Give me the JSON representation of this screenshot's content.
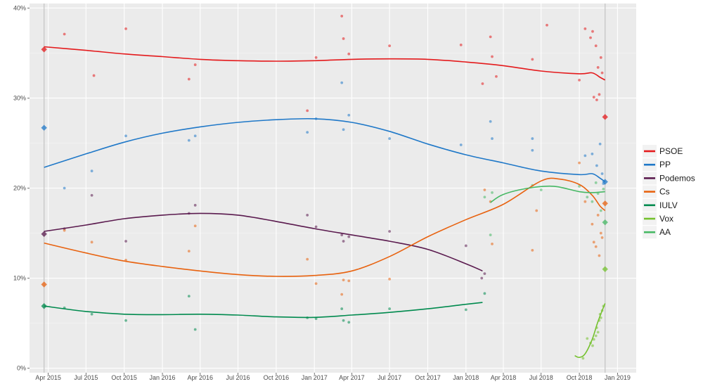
{
  "chart_data": {
    "type": "line",
    "xlim": [
      "2015-02-15",
      "2019-02-15"
    ],
    "ylim": [
      -0.5,
      40.5
    ],
    "y_ticks": [
      {
        "value": 0,
        "label": "0%"
      },
      {
        "value": 10,
        "label": "10%"
      },
      {
        "value": 20,
        "label": "20%"
      },
      {
        "value": 30,
        "label": "30%"
      },
      {
        "value": 40,
        "label": "40%"
      }
    ],
    "x_ticks": [
      {
        "date": "2015-04-01",
        "label": "Apr 2015"
      },
      {
        "date": "2015-07-01",
        "label": "Jul 2015"
      },
      {
        "date": "2015-10-01",
        "label": "Oct 2015"
      },
      {
        "date": "2016-01-01",
        "label": "Jan 2016"
      },
      {
        "date": "2016-04-01",
        "label": "Apr 2016"
      },
      {
        "date": "2016-07-01",
        "label": "Jul 2016"
      },
      {
        "date": "2016-10-01",
        "label": "Oct 2016"
      },
      {
        "date": "2017-01-01",
        "label": "Jan 2017"
      },
      {
        "date": "2017-04-01",
        "label": "Apr 2017"
      },
      {
        "date": "2017-07-01",
        "label": "Jul 2017"
      },
      {
        "date": "2017-10-01",
        "label": "Oct 2017"
      },
      {
        "date": "2018-01-01",
        "label": "Jan 2018"
      },
      {
        "date": "2018-04-01",
        "label": "Apr 2018"
      },
      {
        "date": "2018-07-01",
        "label": "Jul 2018"
      },
      {
        "date": "2018-10-01",
        "label": "Oct 2018"
      },
      {
        "date": "2019-01-01",
        "label": "Jan 2019"
      }
    ],
    "election_lines": [
      "2015-03-22",
      "2018-12-02"
    ],
    "grid": true,
    "legend_position": "right",
    "series": [
      {
        "name": "PSOE",
        "color": "#e41a1c",
        "trend": [
          [
            "2015-03-22",
            35.7
          ],
          [
            "2015-07-01",
            35.3
          ],
          [
            "2015-10-01",
            34.9
          ],
          [
            "2016-01-01",
            34.6
          ],
          [
            "2016-04-01",
            34.3
          ],
          [
            "2016-07-01",
            34.15
          ],
          [
            "2016-10-01",
            34.1
          ],
          [
            "2017-01-01",
            34.15
          ],
          [
            "2017-04-01",
            34.3
          ],
          [
            "2017-07-01",
            34.35
          ],
          [
            "2017-10-01",
            34.3
          ],
          [
            "2018-01-01",
            34.0
          ],
          [
            "2018-04-01",
            33.6
          ],
          [
            "2018-07-01",
            33.0
          ],
          [
            "2018-10-01",
            32.7
          ],
          [
            "2018-11-01",
            32.8
          ],
          [
            "2018-11-20",
            32.3
          ],
          [
            "2018-12-02",
            32.0
          ]
        ],
        "result_start": [
          "2015-03-22",
          35.4
        ],
        "result_end": [
          "2018-12-02",
          27.9
        ],
        "polls": [
          [
            "2015-05-10",
            37.1
          ],
          [
            "2015-07-20",
            32.5
          ],
          [
            "2015-10-05",
            37.7
          ],
          [
            "2016-03-05",
            32.1
          ],
          [
            "2016-03-20",
            33.7
          ],
          [
            "2016-12-15",
            28.6
          ],
          [
            "2017-01-05",
            34.5
          ],
          [
            "2017-03-08",
            39.1
          ],
          [
            "2017-03-12",
            36.6
          ],
          [
            "2017-03-25",
            34.9
          ],
          [
            "2017-07-01",
            35.8
          ],
          [
            "2017-12-20",
            35.9
          ],
          [
            "2018-02-10",
            31.6
          ],
          [
            "2018-03-01",
            36.8
          ],
          [
            "2018-03-05",
            34.6
          ],
          [
            "2018-03-15",
            32.4
          ],
          [
            "2018-06-10",
            34.3
          ],
          [
            "2018-07-15",
            38.1
          ],
          [
            "2018-10-01",
            32.0
          ],
          [
            "2018-10-15",
            37.7
          ],
          [
            "2018-10-28",
            36.7
          ],
          [
            "2018-11-02",
            37.4
          ],
          [
            "2018-11-05",
            30.1
          ],
          [
            "2018-11-10",
            35.8
          ],
          [
            "2018-11-12",
            29.8
          ],
          [
            "2018-11-15",
            33.4
          ],
          [
            "2018-11-18",
            30.4
          ],
          [
            "2018-11-22",
            34.5
          ],
          [
            "2018-11-25",
            32.8
          ]
        ]
      },
      {
        "name": "PP",
        "color": "#1f78c8",
        "trend": [
          [
            "2015-03-22",
            22.3
          ],
          [
            "2015-07-01",
            23.8
          ],
          [
            "2015-10-01",
            25.1
          ],
          [
            "2016-01-01",
            26.1
          ],
          [
            "2016-04-01",
            26.8
          ],
          [
            "2016-07-01",
            27.3
          ],
          [
            "2016-10-01",
            27.6
          ],
          [
            "2017-01-01",
            27.7
          ],
          [
            "2017-04-01",
            27.3
          ],
          [
            "2017-07-01",
            26.3
          ],
          [
            "2017-10-01",
            24.9
          ],
          [
            "2018-01-01",
            23.7
          ],
          [
            "2018-04-01",
            22.8
          ],
          [
            "2018-07-01",
            21.9
          ],
          [
            "2018-10-01",
            21.5
          ],
          [
            "2018-11-01",
            21.6
          ],
          [
            "2018-11-20",
            21.1
          ],
          [
            "2018-12-02",
            20.7
          ]
        ],
        "result_start": [
          "2015-03-22",
          26.7
        ],
        "result_end": [
          "2018-12-02",
          20.7
        ],
        "polls": [
          [
            "2015-05-10",
            20.0
          ],
          [
            "2015-07-15",
            21.9
          ],
          [
            "2015-10-05",
            25.8
          ],
          [
            "2016-03-05",
            25.3
          ],
          [
            "2016-03-20",
            25.8
          ],
          [
            "2016-12-15",
            26.2
          ],
          [
            "2017-01-05",
            27.7
          ],
          [
            "2017-03-08",
            31.7
          ],
          [
            "2017-03-12",
            26.5
          ],
          [
            "2017-03-25",
            28.1
          ],
          [
            "2017-07-01",
            25.5
          ],
          [
            "2017-12-20",
            24.8
          ],
          [
            "2018-03-01",
            27.4
          ],
          [
            "2018-03-05",
            25.5
          ],
          [
            "2018-06-10",
            25.5
          ],
          [
            "2018-06-10",
            24.2
          ],
          [
            "2018-10-15",
            23.6
          ],
          [
            "2018-11-01",
            23.8
          ],
          [
            "2018-11-12",
            22.5
          ],
          [
            "2018-11-20",
            24.9
          ],
          [
            "2018-11-25",
            21.6
          ],
          [
            "2018-11-28",
            20.5
          ]
        ]
      },
      {
        "name": "Podemos",
        "color": "#5a1a4e",
        "trend": [
          [
            "2015-03-22",
            15.2
          ],
          [
            "2015-07-01",
            15.9
          ],
          [
            "2015-10-01",
            16.6
          ],
          [
            "2016-01-01",
            17.0
          ],
          [
            "2016-04-01",
            17.2
          ],
          [
            "2016-07-01",
            17.0
          ],
          [
            "2016-10-01",
            16.3
          ],
          [
            "2017-01-01",
            15.5
          ],
          [
            "2017-04-01",
            14.8
          ],
          [
            "2017-07-01",
            14.1
          ],
          [
            "2017-10-01",
            13.2
          ],
          [
            "2018-01-01",
            11.6
          ],
          [
            "2018-02-10",
            10.8
          ]
        ],
        "result_start": [
          "2015-03-22",
          14.9
        ],
        "result_end": null,
        "polls": [
          [
            "2015-05-10",
            15.5
          ],
          [
            "2015-07-15",
            19.2
          ],
          [
            "2015-10-05",
            14.1
          ],
          [
            "2016-03-05",
            17.2
          ],
          [
            "2016-03-20",
            18.1
          ],
          [
            "2016-12-15",
            17.0
          ],
          [
            "2017-01-05",
            15.7
          ],
          [
            "2017-03-08",
            14.8
          ],
          [
            "2017-03-12",
            14.1
          ],
          [
            "2017-03-25",
            14.6
          ],
          [
            "2017-07-01",
            15.2
          ],
          [
            "2018-01-01",
            13.6
          ],
          [
            "2018-02-08",
            10.0
          ],
          [
            "2018-02-15",
            10.5
          ]
        ]
      },
      {
        "name": "Cs",
        "color": "#e8620f",
        "trend": [
          [
            "2015-03-22",
            13.9
          ],
          [
            "2015-07-01",
            12.8
          ],
          [
            "2015-10-01",
            11.9
          ],
          [
            "2016-01-01",
            11.3
          ],
          [
            "2016-04-01",
            10.8
          ],
          [
            "2016-07-01",
            10.4
          ],
          [
            "2016-10-01",
            10.2
          ],
          [
            "2017-01-01",
            10.3
          ],
          [
            "2017-04-01",
            10.8
          ],
          [
            "2017-07-01",
            12.4
          ],
          [
            "2017-10-01",
            14.6
          ],
          [
            "2018-01-01",
            16.5
          ],
          [
            "2018-04-01",
            18.2
          ],
          [
            "2018-07-01",
            20.8
          ],
          [
            "2018-08-15",
            21.0
          ],
          [
            "2018-10-01",
            20.4
          ],
          [
            "2018-11-01",
            19.2
          ],
          [
            "2018-11-20",
            18.0
          ],
          [
            "2018-12-02",
            17.5
          ]
        ],
        "result_start": [
          "2015-03-22",
          9.3
        ],
        "result_end": [
          "2018-12-02",
          18.3
        ],
        "polls": [
          [
            "2015-05-10",
            15.3
          ],
          [
            "2015-07-15",
            14.0
          ],
          [
            "2015-10-05",
            12.0
          ],
          [
            "2016-03-05",
            13.0
          ],
          [
            "2016-03-20",
            15.8
          ],
          [
            "2016-12-15",
            12.1
          ],
          [
            "2017-01-05",
            9.4
          ],
          [
            "2017-03-08",
            8.2
          ],
          [
            "2017-03-12",
            9.8
          ],
          [
            "2017-03-25",
            9.7
          ],
          [
            "2017-07-01",
            9.9
          ],
          [
            "2018-02-15",
            19.8
          ],
          [
            "2018-03-01",
            18.5
          ],
          [
            "2018-03-05",
            13.8
          ],
          [
            "2018-06-10",
            13.1
          ],
          [
            "2018-06-20",
            17.5
          ],
          [
            "2018-10-01",
            22.8
          ],
          [
            "2018-10-15",
            18.5
          ],
          [
            "2018-11-01",
            16.0
          ],
          [
            "2018-11-05",
            14.0
          ],
          [
            "2018-11-10",
            13.5
          ],
          [
            "2018-11-15",
            17.0
          ],
          [
            "2018-11-18",
            12.5
          ],
          [
            "2018-11-22",
            15.0
          ],
          [
            "2018-11-25",
            14.5
          ]
        ]
      },
      {
        "name": "IULV",
        "color": "#008a4e",
        "trend": [
          [
            "2015-03-22",
            6.9
          ],
          [
            "2015-07-01",
            6.3
          ],
          [
            "2015-10-01",
            6.0
          ],
          [
            "2016-01-01",
            5.95
          ],
          [
            "2016-04-01",
            6.0
          ],
          [
            "2016-07-01",
            5.9
          ],
          [
            "2016-10-01",
            5.7
          ],
          [
            "2017-01-01",
            5.65
          ],
          [
            "2017-04-01",
            5.9
          ],
          [
            "2017-07-01",
            6.2
          ],
          [
            "2017-10-01",
            6.6
          ],
          [
            "2018-01-01",
            7.1
          ],
          [
            "2018-02-10",
            7.3
          ]
        ],
        "result_start": [
          "2015-03-22",
          6.9
        ],
        "result_end": null,
        "polls": [
          [
            "2015-05-10",
            6.7
          ],
          [
            "2015-07-15",
            6.0
          ],
          [
            "2015-10-05",
            5.3
          ],
          [
            "2016-03-05",
            8.0
          ],
          [
            "2016-03-20",
            4.3
          ],
          [
            "2016-12-15",
            5.6
          ],
          [
            "2017-01-05",
            5.5
          ],
          [
            "2017-03-08",
            6.6
          ],
          [
            "2017-03-12",
            5.3
          ],
          [
            "2017-03-25",
            5.1
          ],
          [
            "2017-07-01",
            6.6
          ],
          [
            "2018-01-01",
            6.5
          ],
          [
            "2018-02-15",
            8.3
          ]
        ]
      },
      {
        "name": "Vox",
        "color": "#74c12d",
        "trend": [
          [
            "2018-09-20",
            1.4
          ],
          [
            "2018-10-01",
            1.2
          ],
          [
            "2018-10-15",
            1.6
          ],
          [
            "2018-11-01",
            3.2
          ],
          [
            "2018-11-15",
            5.2
          ],
          [
            "2018-12-02",
            7.2
          ]
        ],
        "result_start": null,
        "result_end": [
          "2018-12-02",
          11.0
        ],
        "polls": [
          [
            "2018-10-10",
            1.1
          ],
          [
            "2018-10-20",
            3.3
          ],
          [
            "2018-10-28",
            2.8
          ],
          [
            "2018-11-02",
            2.5
          ],
          [
            "2018-11-05",
            3.2
          ],
          [
            "2018-11-10",
            3.6
          ],
          [
            "2018-11-12",
            4.5
          ],
          [
            "2018-11-15",
            4.0
          ],
          [
            "2018-11-18",
            5.3
          ],
          [
            "2018-11-20",
            6.0
          ],
          [
            "2018-11-22",
            5.6
          ],
          [
            "2018-11-25",
            6.4
          ],
          [
            "2018-11-28",
            6.9
          ]
        ]
      },
      {
        "name": "AA",
        "color": "#46b864",
        "trend": [
          [
            "2018-03-01",
            18.4
          ],
          [
            "2018-04-01",
            19.3
          ],
          [
            "2018-06-01",
            20.0
          ],
          [
            "2018-08-01",
            20.2
          ],
          [
            "2018-10-01",
            19.6
          ],
          [
            "2018-11-01",
            19.5
          ],
          [
            "2018-12-02",
            19.6
          ]
        ],
        "result_start": null,
        "result_end": [
          "2018-12-02",
          16.2
        ],
        "polls": [
          [
            "2018-02-15",
            19.0
          ],
          [
            "2018-03-01",
            14.8
          ],
          [
            "2018-03-05",
            19.5
          ],
          [
            "2018-06-10",
            20.3
          ],
          [
            "2018-07-01",
            19.8
          ],
          [
            "2018-10-01",
            20.2
          ],
          [
            "2018-10-20",
            19.0
          ],
          [
            "2018-11-01",
            18.5
          ],
          [
            "2018-11-10",
            20.6
          ],
          [
            "2018-11-15",
            19.4
          ],
          [
            "2018-11-22",
            17.5
          ],
          [
            "2018-11-28",
            19.9
          ]
        ]
      }
    ]
  }
}
